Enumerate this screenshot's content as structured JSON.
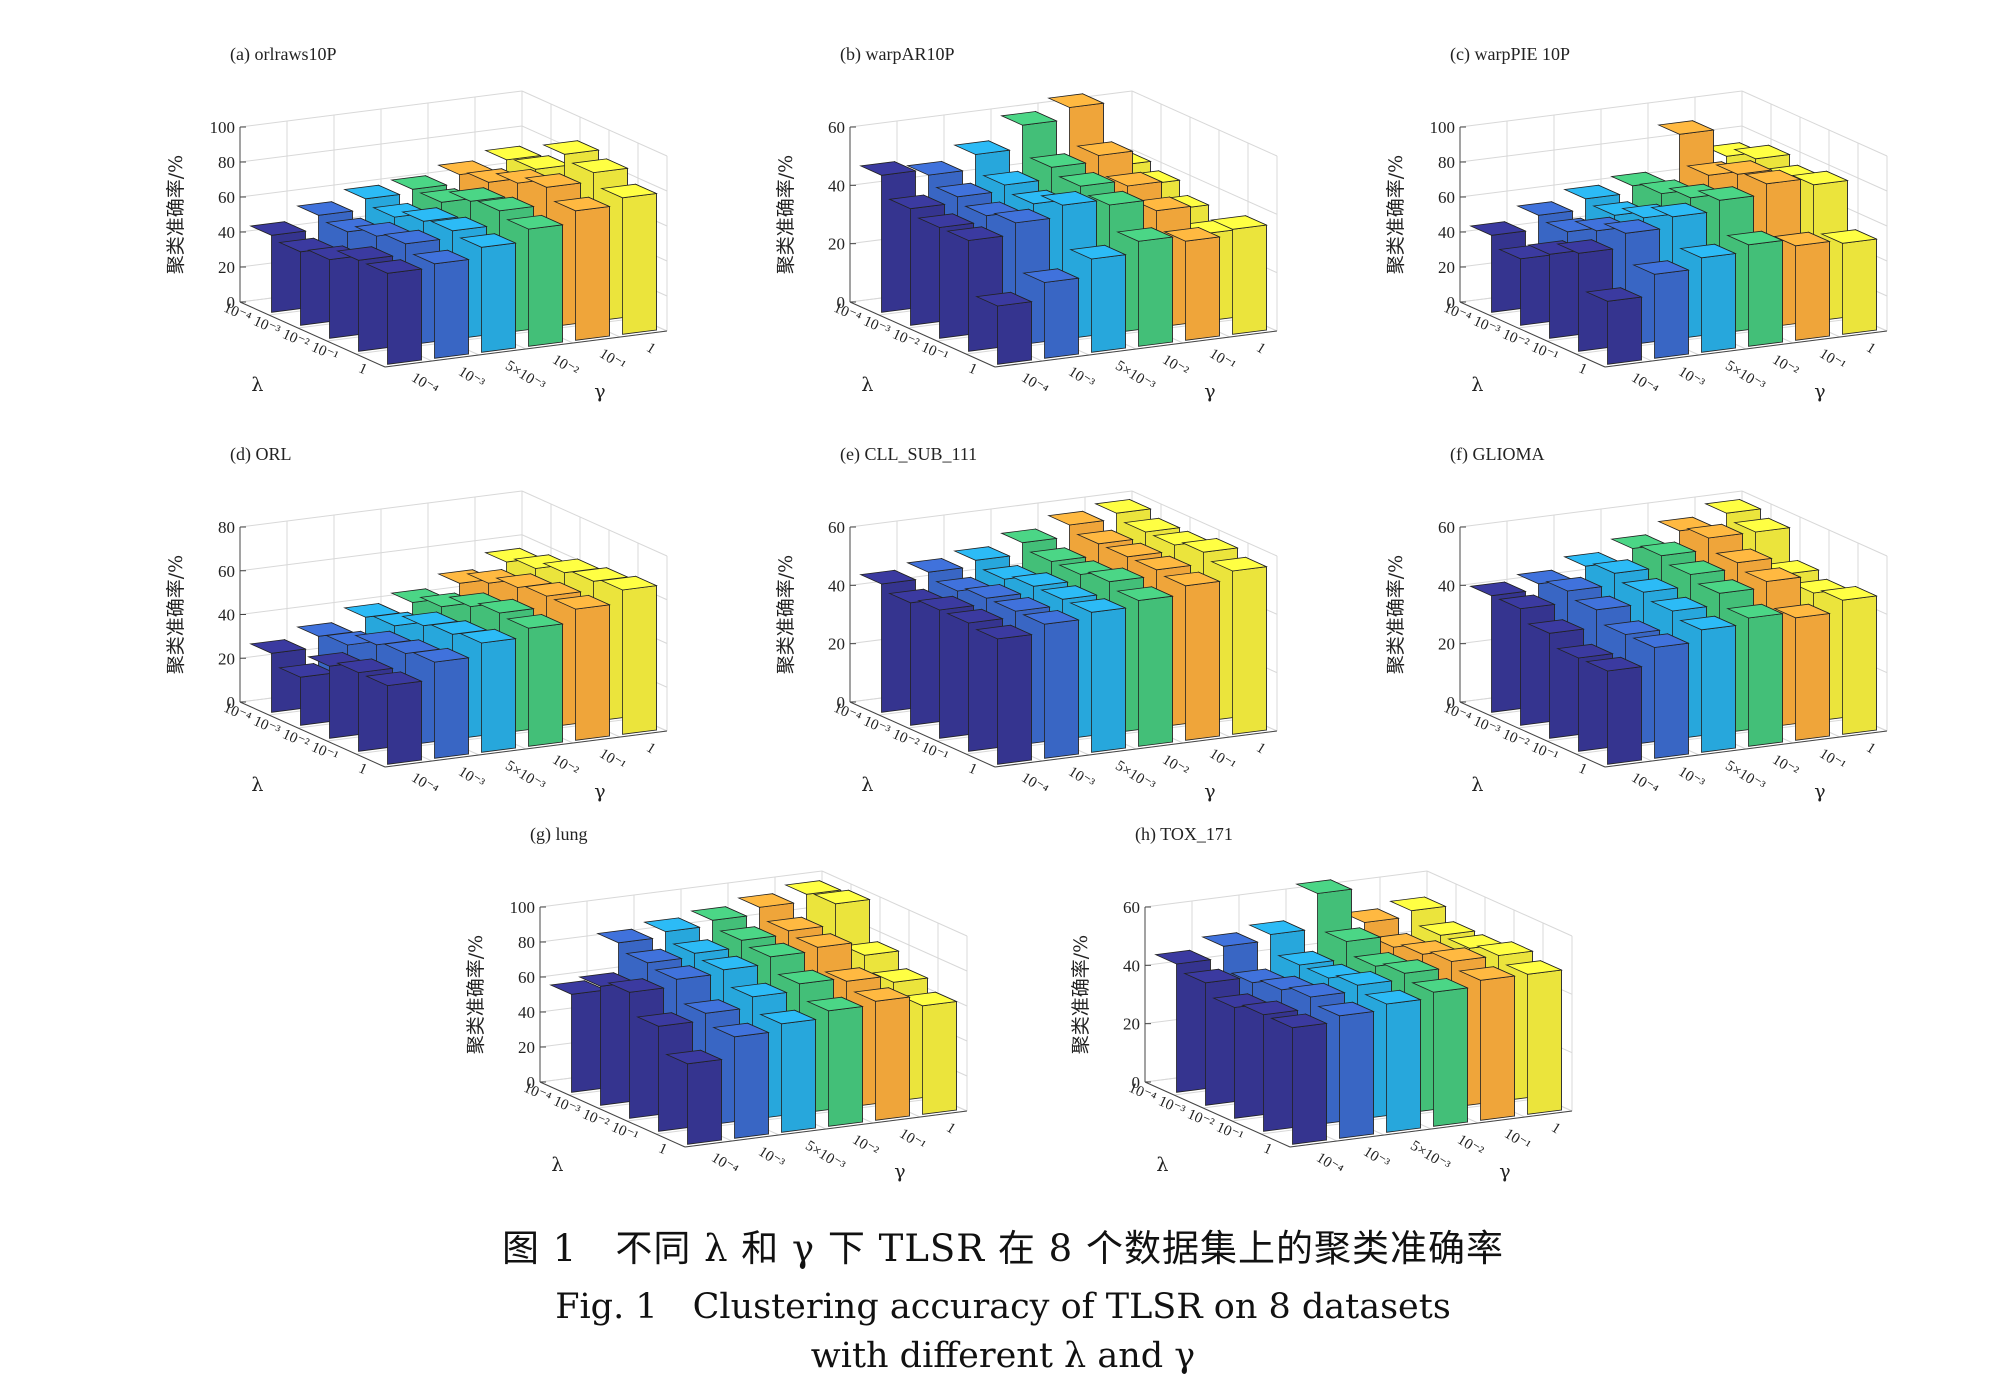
{
  "figure": {
    "caption_zh": "图 1　不同 λ 和 γ 下 TLSR 在 8 个数据集上的聚类准确率",
    "caption_en_line1": "Fig. 1　Clustering accuracy of TLSR on 8 datasets",
    "caption_en_line2": "with different λ and γ"
  },
  "colors": [
    "#35348f",
    "#3966c4",
    "#27a7dc",
    "#43bf78",
    "#efa53a",
    "#ebe43c"
  ],
  "chart_data": [
    {
      "type": "bar3d",
      "title": "(a) orlraws10P",
      "zlabel": "聚类准确率/%",
      "zticks": [
        0,
        20,
        40,
        60,
        80,
        100
      ],
      "zlim": [
        0,
        100
      ],
      "lambda": [
        "10⁻⁴",
        "10⁻³",
        "10⁻²",
        "10⁻¹",
        "1"
      ],
      "gamma": [
        "10⁻⁴",
        "10⁻³",
        "5×10⁻³",
        "10⁻²",
        "10⁻¹",
        "1"
      ],
      "xaxis_symbol": "λ",
      "yaxis_symbol": "γ",
      "values": [
        [
          44,
          52,
          58,
          60,
          65,
          70
        ],
        [
          42,
          50,
          55,
          60,
          68,
          72
        ],
        [
          45,
          55,
          60,
          68,
          75,
          88
        ],
        [
          52,
          58,
          62,
          70,
          80,
          85
        ],
        [
          52,
          54,
          60,
          67,
          74,
          78
        ]
      ]
    },
    {
      "type": "bar3d",
      "title": "(b) warpAR10P",
      "zlabel": "聚类准确率/%",
      "zticks": [
        0,
        20,
        40,
        60
      ],
      "zlim": [
        0,
        60
      ],
      "lambda": [
        "10⁻⁴",
        "10⁻³",
        "10⁻²",
        "10⁻¹",
        "1"
      ],
      "gamma": [
        "10⁻⁴",
        "10⁻³",
        "5×10⁻³",
        "10⁻²",
        "10⁻¹",
        "1"
      ],
      "xaxis_symbol": "λ",
      "yaxis_symbol": "γ",
      "values": [
        [
          47,
          45,
          50,
          58,
          62,
          40
        ],
        [
          40,
          42,
          44,
          48,
          50,
          38
        ],
        [
          38,
          40,
          42,
          46,
          44,
          34
        ],
        [
          38,
          42,
          46,
          44,
          40,
          30
        ],
        [
          20,
          26,
          32,
          36,
          34,
          36
        ]
      ]
    },
    {
      "type": "bar3d",
      "title": "(c) warpPIE 10P",
      "zlabel": "聚类准确率/%",
      "zticks": [
        0,
        20,
        40,
        60,
        80,
        100
      ],
      "zlim": [
        0,
        100
      ],
      "lambda": [
        "10⁻⁴",
        "10⁻³",
        "10⁻²",
        "10⁻¹",
        "1"
      ],
      "gamma": [
        "10⁻⁴",
        "10⁻³",
        "5×10⁻³",
        "10⁻²",
        "10⁻¹",
        "1"
      ],
      "xaxis_symbol": "λ",
      "yaxis_symbol": "γ",
      "values": [
        [
          44,
          52,
          58,
          62,
          88,
          72
        ],
        [
          38,
          50,
          56,
          65,
          72,
          78
        ],
        [
          48,
          58,
          62,
          70,
          80,
          74
        ],
        [
          56,
          64,
          70,
          76,
          82,
          78
        ],
        [
          36,
          48,
          54,
          58,
          54,
          52
        ]
      ]
    },
    {
      "type": "bar3d",
      "title": "(d) ORL",
      "zlabel": "聚类准确率/%",
      "zticks": [
        0,
        20,
        40,
        60,
        80
      ],
      "zlim": [
        0,
        80
      ],
      "lambda": [
        "10⁻⁴",
        "10⁻³",
        "10⁻²",
        "10⁻¹",
        "1"
      ],
      "gamma": [
        "10⁻⁴",
        "10⁻³",
        "5×10⁻³",
        "10⁻²",
        "10⁻¹",
        "1"
      ],
      "xaxis_symbol": "λ",
      "yaxis_symbol": "γ",
      "values": [
        [
          27,
          32,
          38,
          42,
          48,
          55
        ],
        [
          22,
          34,
          40,
          46,
          54,
          58
        ],
        [
          33,
          40,
          46,
          52,
          58,
          62
        ],
        [
          36,
          42,
          48,
          55,
          60,
          64
        ],
        [
          36,
          44,
          50,
          54,
          60,
          66
        ]
      ]
    },
    {
      "type": "bar3d",
      "title": "(e) CLL_SUB_111",
      "zlabel": "聚类准确率/%",
      "zticks": [
        0,
        20,
        40,
        60
      ],
      "zlim": [
        0,
        60
      ],
      "lambda": [
        "10⁻⁴",
        "10⁻³",
        "10⁻²",
        "10⁻¹",
        "1"
      ],
      "gamma": [
        "10⁻⁴",
        "10⁻³",
        "5×10⁻³",
        "10⁻²",
        "10⁻¹",
        "1"
      ],
      "xaxis_symbol": "λ",
      "yaxis_symbol": "γ",
      "values": [
        [
          44,
          46,
          48,
          52,
          56,
          58
        ],
        [
          42,
          44,
          46,
          50,
          54,
          56
        ],
        [
          44,
          46,
          48,
          50,
          54,
          56
        ],
        [
          44,
          46,
          48,
          52,
          54,
          58
        ],
        [
          43,
          46,
          48,
          50,
          53,
          56
        ]
      ]
    },
    {
      "type": "bar3d",
      "title": "(f) GLIOMA",
      "zlabel": "聚类准确率/%",
      "zticks": [
        0,
        20,
        40,
        60
      ],
      "zlim": [
        0,
        60
      ],
      "lambda": [
        "10⁻⁴",
        "10⁻³",
        "10⁻²",
        "10⁻¹",
        "1"
      ],
      "gamma": [
        "10⁻⁴",
        "10⁻³",
        "5×10⁻³",
        "10⁻²",
        "10⁻¹",
        "1"
      ],
      "xaxis_symbol": "λ",
      "yaxis_symbol": "γ",
      "values": [
        [
          40,
          42,
          46,
          50,
          54,
          58
        ],
        [
          40,
          44,
          48,
          52,
          56,
          56
        ],
        [
          36,
          42,
          46,
          50,
          52,
          46
        ],
        [
          32,
          38,
          44,
          48,
          50,
          44
        ],
        [
          32,
          38,
          42,
          44,
          42,
          46
        ]
      ]
    },
    {
      "type": "bar3d",
      "title": "(g) lung",
      "zlabel": "聚类准确率/%",
      "zticks": [
        0,
        20,
        40,
        60,
        80,
        100
      ],
      "zlim": [
        0,
        100
      ],
      "lambda": [
        "10⁻⁴",
        "10⁻³",
        "10⁻²",
        "10⁻¹",
        "1"
      ],
      "gamma": [
        "10⁻⁴",
        "10⁻³",
        "5×10⁻³",
        "10⁻²",
        "10⁻¹",
        "1"
      ],
      "xaxis_symbol": "λ",
      "yaxis_symbol": "γ",
      "values": [
        [
          56,
          82,
          85,
          88,
          92,
          96
        ],
        [
          68,
          78,
          80,
          84,
          86,
          98
        ],
        [
          72,
          76,
          78,
          82,
          84,
          76
        ],
        [
          60,
          64,
          70,
          74,
          72,
          68
        ],
        [
          46,
          58,
          62,
          66,
          68,
          62
        ]
      ]
    },
    {
      "type": "bar3d",
      "title": "(h) TOX_171",
      "zlabel": "聚类准确率/%",
      "zticks": [
        0,
        20,
        40,
        60
      ],
      "zlim": [
        0,
        60
      ],
      "lambda": [
        "10⁻⁴",
        "10⁻³",
        "10⁻²",
        "10⁻¹",
        "1"
      ],
      "gamma": [
        "10⁻⁴",
        "10⁻³",
        "5×10⁻³",
        "10⁻²",
        "10⁻¹",
        "1"
      ],
      "xaxis_symbol": "λ",
      "yaxis_symbol": "γ",
      "values": [
        [
          44,
          48,
          50,
          62,
          50,
          52
        ],
        [
          42,
          40,
          44,
          50,
          46,
          48
        ],
        [
          38,
          42,
          44,
          46,
          48,
          48
        ],
        [
          40,
          44,
          46,
          48,
          50,
          50
        ],
        [
          40,
          42,
          44,
          46,
          48,
          48
        ]
      ]
    }
  ]
}
